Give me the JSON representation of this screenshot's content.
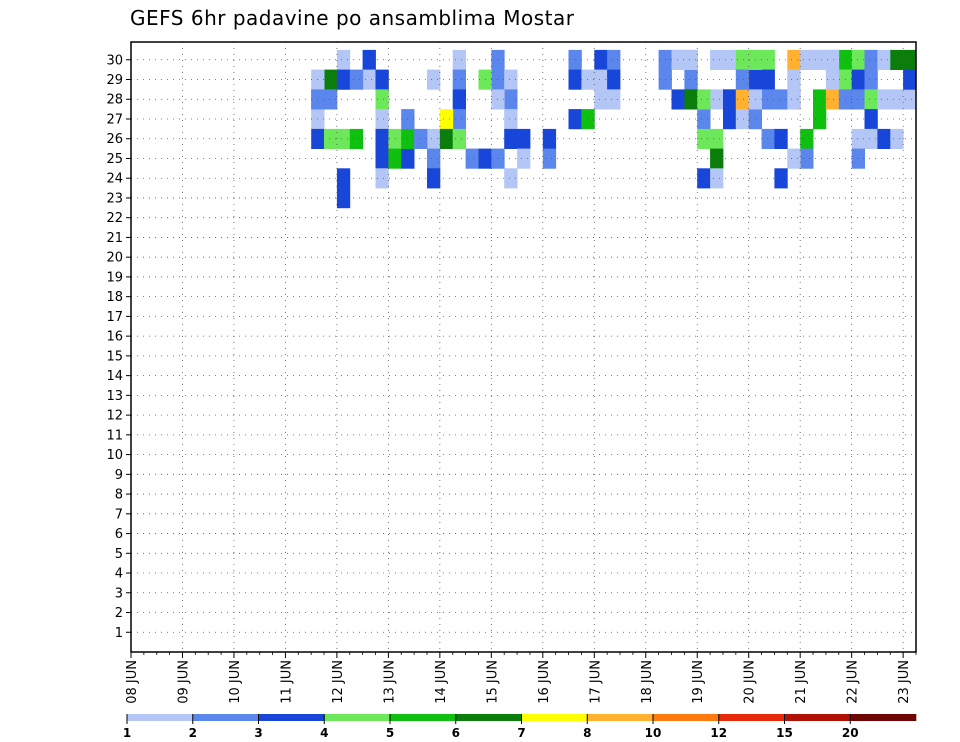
{
  "chart_data": {
    "type": "heatmap",
    "title": "GEFS 6hr padavine po ansamblima Mostar",
    "x_tick_labels": [
      "08 JUN",
      "09 JUN",
      "10 JUN",
      "11 JUN",
      "12 JUN",
      "13 JUN",
      "14 JUN",
      "15 JUN",
      "16 JUN",
      "17 JUN",
      "18 JUN",
      "19 JUN",
      "20 JUN",
      "21 JUN",
      "22 JUN",
      "23 JUN"
    ],
    "y_tick_labels": [
      "1",
      "2",
      "3",
      "4",
      "5",
      "6",
      "7",
      "8",
      "9",
      "10",
      "11",
      "12",
      "13",
      "14",
      "15",
      "16",
      "17",
      "18",
      "19",
      "20",
      "21",
      "22",
      "23",
      "24",
      "25",
      "26",
      "27",
      "28",
      "29",
      "30"
    ],
    "x_unit": "6-hour steps since 08 JUN 00Z",
    "xlim": [
      0,
      61
    ],
    "ylim": [
      0,
      30
    ],
    "grid": true,
    "legend_placement": "bottom",
    "colorbar": {
      "labels": [
        "1",
        "2",
        "3",
        "4",
        "5",
        "6",
        "7",
        "8",
        "10",
        "12",
        "15",
        "20"
      ],
      "colors": [
        "#b3c6f5",
        "#5b86ec",
        "#1846d9",
        "#6ce85a",
        "#10c010",
        "#0b7d0b",
        "#ffff00",
        "#ffb12f",
        "#ff7a0e",
        "#e6280b",
        "#b01208",
        "#6e0606"
      ]
    },
    "cells": [
      [
        16,
        30,
        0
      ],
      [
        18,
        30,
        2
      ],
      [
        16,
        29,
        0
      ],
      [
        18,
        29,
        0
      ],
      [
        14,
        28,
        1
      ],
      [
        14,
        27,
        0
      ],
      [
        14,
        26,
        2
      ],
      [
        15,
        26,
        3
      ],
      [
        16,
        26,
        3
      ],
      [
        17,
        26,
        4
      ],
      [
        19,
        26,
        1
      ],
      [
        16,
        24,
        2
      ],
      [
        16,
        23,
        2
      ],
      [
        25,
        30,
        0
      ],
      [
        25,
        29,
        1
      ],
      [
        25,
        28,
        2
      ],
      [
        25,
        27,
        1
      ],
      [
        19,
        29,
        2
      ],
      [
        19,
        28,
        3
      ],
      [
        19,
        27,
        0
      ],
      [
        19,
        26,
        2
      ],
      [
        19,
        25,
        2
      ],
      [
        19,
        24,
        0
      ],
      [
        36,
        30,
        2
      ],
      [
        37,
        30,
        1
      ],
      [
        36,
        29,
        0
      ],
      [
        37,
        29,
        2
      ],
      [
        34,
        30,
        1
      ],
      [
        34,
        29,
        2
      ],
      [
        35,
        29,
        0
      ],
      [
        36,
        28,
        0
      ],
      [
        37,
        28,
        0
      ],
      [
        28,
        30,
        1
      ],
      [
        28,
        29,
        1
      ],
      [
        29,
        29,
        0
      ],
      [
        29,
        28,
        1
      ],
      [
        28,
        28,
        0
      ],
      [
        29,
        27,
        0
      ],
      [
        20,
        26,
        3
      ],
      [
        20,
        25,
        4
      ],
      [
        21,
        25,
        2
      ],
      [
        21,
        26,
        4
      ],
      [
        23,
        26,
        0
      ],
      [
        23,
        25,
        1
      ],
      [
        23,
        24,
        2
      ],
      [
        29,
        26,
        2
      ],
      [
        30,
        26,
        2
      ],
      [
        30,
        25,
        0
      ],
      [
        29,
        24,
        0
      ],
      [
        32,
        26,
        2
      ],
      [
        32,
        25,
        1
      ],
      [
        24,
        27,
        6
      ],
      [
        24,
        26,
        5
      ],
      [
        25,
        26,
        3
      ],
      [
        22,
        26,
        1
      ],
      [
        21,
        27,
        1
      ],
      [
        26,
        25,
        1
      ],
      [
        27,
        25,
        2
      ],
      [
        28,
        25,
        1
      ],
      [
        34,
        27,
        2
      ],
      [
        35,
        27,
        4
      ],
      [
        41,
        30,
        1
      ],
      [
        42,
        30,
        1
      ],
      [
        41,
        29,
        1
      ],
      [
        43,
        30,
        4
      ],
      [
        43,
        29,
        1
      ],
      [
        43,
        28,
        2
      ],
      [
        45,
        30,
        0
      ],
      [
        46,
        30,
        0
      ],
      [
        48,
        30,
        3
      ],
      [
        49,
        30,
        3
      ],
      [
        48,
        29,
        2
      ],
      [
        49,
        29,
        2
      ],
      [
        48,
        28,
        5
      ],
      [
        49,
        28,
        1
      ],
      [
        50,
        28,
        0
      ],
      [
        51,
        28,
        1
      ],
      [
        53,
        30,
        0
      ],
      [
        54,
        30,
        1
      ],
      [
        55,
        30,
        4
      ],
      [
        55,
        29,
        3
      ],
      [
        56,
        30,
        3
      ],
      [
        56,
        29,
        2
      ],
      [
        57,
        30,
        1
      ],
      [
        57,
        29,
        1
      ],
      [
        58,
        30,
        0
      ],
      [
        53,
        28,
        4
      ],
      [
        54,
        28,
        7
      ],
      [
        53,
        27,
        4
      ],
      [
        55,
        28,
        1
      ],
      [
        56,
        28,
        1
      ],
      [
        57,
        28,
        3
      ],
      [
        57,
        27,
        2
      ],
      [
        58,
        28,
        0
      ],
      [
        59,
        28,
        0
      ],
      [
        60,
        28,
        0
      ],
      [
        60,
        30,
        5
      ],
      [
        60,
        29,
        2
      ],
      [
        44,
        28,
        0
      ],
      [
        45,
        28,
        0
      ],
      [
        44,
        27,
        1
      ],
      [
        46,
        28,
        5
      ],
      [
        47,
        28,
        1
      ],
      [
        46,
        27,
        2
      ],
      [
        47,
        27,
        0
      ],
      [
        48,
        27,
        1
      ],
      [
        56,
        26,
        0
      ],
      [
        57,
        26,
        0
      ],
      [
        56,
        25,
        1
      ],
      [
        58,
        26,
        2
      ],
      [
        59,
        26,
        0
      ],
      [
        44,
        26,
        3
      ],
      [
        45,
        26,
        3
      ],
      [
        45,
        25,
        5
      ],
      [
        49,
        26,
        1
      ],
      [
        50,
        26,
        2
      ],
      [
        52,
        26,
        4
      ],
      [
        52,
        25,
        1
      ],
      [
        51,
        25,
        0
      ],
      [
        50,
        24,
        2
      ],
      [
        44,
        24,
        2
      ],
      [
        45,
        24,
        0
      ]
    ],
    "cells_extra": [
      [
        15,
        29,
        5
      ],
      [
        16,
        29,
        2
      ],
      [
        17,
        29,
        1
      ],
      [
        15,
        28,
        1
      ],
      [
        23,
        29,
        0
      ],
      [
        27,
        29,
        3
      ],
      [
        14,
        29,
        0
      ],
      [
        14,
        28,
        1
      ],
      [
        42,
        28,
        2
      ],
      [
        43,
        28,
        5
      ],
      [
        44,
        28,
        3
      ],
      [
        46,
        28,
        2
      ],
      [
        47,
        28,
        7
      ],
      [
        48,
        28,
        0
      ],
      [
        50,
        28,
        1
      ],
      [
        51,
        28,
        0
      ],
      [
        42,
        30,
        0
      ],
      [
        43,
        30,
        0
      ],
      [
        47,
        30,
        3
      ],
      [
        48,
        30,
        3
      ],
      [
        51,
        30,
        7
      ],
      [
        52,
        30,
        0
      ],
      [
        53,
        30,
        0
      ],
      [
        54,
        30,
        0
      ],
      [
        59,
        30,
        5
      ],
      [
        47,
        29,
        1
      ],
      [
        51,
        29,
        0
      ],
      [
        54,
        29,
        0
      ]
    ]
  }
}
